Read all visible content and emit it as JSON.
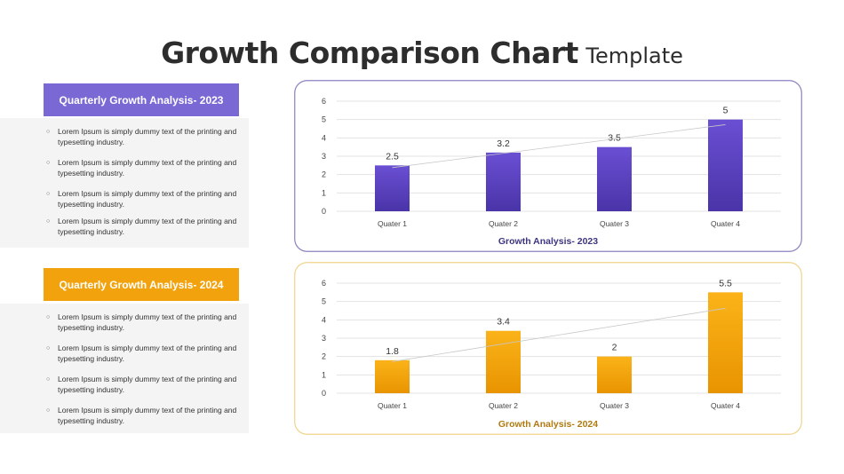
{
  "page": {
    "title_main": "Growth Comparison Chart",
    "title_sub": "Template"
  },
  "sections": [
    {
      "header": "Quarterly Growth Analysis- 2023",
      "color": "#7a68d4",
      "bullets": [
        "Lorem Ipsum is simply dummy text of the printing and typesetting industry.",
        "Lorem Ipsum is simply dummy text of the printing and typesetting industry.",
        "Lorem Ipsum is simply dummy text of the printing and typesetting industry.",
        "Lorem Ipsum is simply dummy text of the printing and typesetting industry."
      ]
    },
    {
      "header": "Quarterly Growth Analysis- 2024",
      "color": "#f2a20d",
      "bullets": [
        "Lorem Ipsum is simply dummy text of the printing and typesetting industry.",
        "Lorem Ipsum is simply dummy text of the printing and typesetting industry.",
        "Lorem Ipsum is simply dummy text of the printing and typesetting industry.",
        "Lorem Ipsum is simply dummy text of the printing and typesetting industry."
      ]
    }
  ],
  "chart_data": [
    {
      "type": "bar",
      "title": "Growth Analysis- 2023",
      "categories": [
        "Quater 1",
        "Quater 2",
        "Quater 3",
        "Quater 4"
      ],
      "values": [
        2.5,
        3.2,
        3.5,
        5
      ],
      "value_labels": [
        "2.5",
        "3.2",
        "3.5",
        "5"
      ],
      "ylim": [
        0,
        6
      ],
      "yticks": [
        "0",
        "1",
        "2",
        "3",
        "4",
        "5",
        "6"
      ],
      "trendline": "linear",
      "grid": true,
      "bar_color_top": "#6a4fd3",
      "bar_color_bottom": "#4a34a8",
      "title_color": "#3d3580",
      "border_color": "#8a80c0"
    },
    {
      "type": "bar",
      "title": "Growth Analysis- 2024",
      "categories": [
        "Quater 1",
        "Quater 2",
        "Quater 3",
        "Quater 4"
      ],
      "values": [
        1.8,
        3.4,
        2,
        5.5
      ],
      "value_labels": [
        "1.8",
        "3.4",
        "2",
        "5.5"
      ],
      "ylim": [
        0,
        6
      ],
      "yticks": [
        "0",
        "1",
        "2",
        "3",
        "4",
        "5",
        "6"
      ],
      "trendline": "linear",
      "grid": true,
      "bar_color_top": "#fbb319",
      "bar_color_bottom": "#e89400",
      "title_color": "#b07a10",
      "border_color": "#f0d48a"
    }
  ]
}
